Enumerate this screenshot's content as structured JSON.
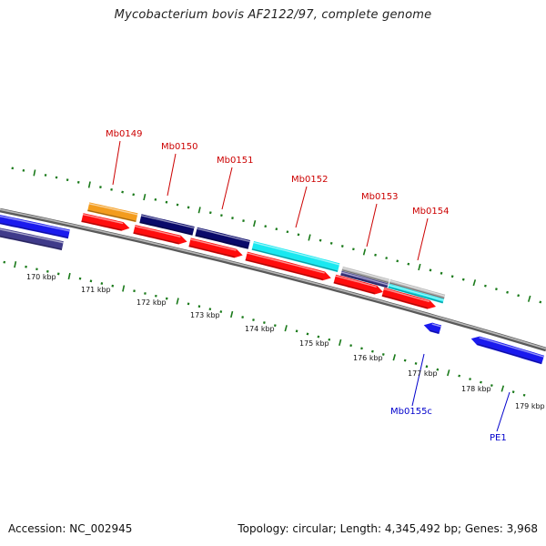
{
  "title": "Mycobacterium bovis AF2122/97, complete genome",
  "accession": "Accession: NC_002945",
  "summary": "Topology: circular; Length: 4,345,492 bp; Genes: 3,968",
  "colors": {
    "backbone": "#8a8a8a",
    "tick": "#1a7a1a",
    "orange": "#f39c1d",
    "navy": "#0a0a6a",
    "cyan": "#19e8f0",
    "red": "#ff0d0d",
    "blue": "#1a1aee",
    "slate": "#3f3a8a",
    "gray": "#b5b5b5",
    "label_red": "#cc0000",
    "label_blue": "#0000cc"
  },
  "scale_labels": [
    "170 kbp",
    "171 kbp",
    "172 kbp",
    "173 kbp",
    "174 kbp",
    "175 kbp",
    "176 kbp",
    "177 kbp",
    "178 kbp",
    "179 kbp"
  ],
  "gene_labels": [
    {
      "name": "Mb0149",
      "color": "label_red"
    },
    {
      "name": "Mb0150",
      "color": "label_red"
    },
    {
      "name": "Mb0151",
      "color": "label_red"
    },
    {
      "name": "Mb0152",
      "color": "label_red"
    },
    {
      "name": "Mb0153",
      "color": "label_red"
    },
    {
      "name": "Mb0154",
      "color": "label_red"
    },
    {
      "name": "Mb0155c",
      "color": "label_blue"
    },
    {
      "name": "PE1",
      "color": "label_blue"
    }
  ]
}
